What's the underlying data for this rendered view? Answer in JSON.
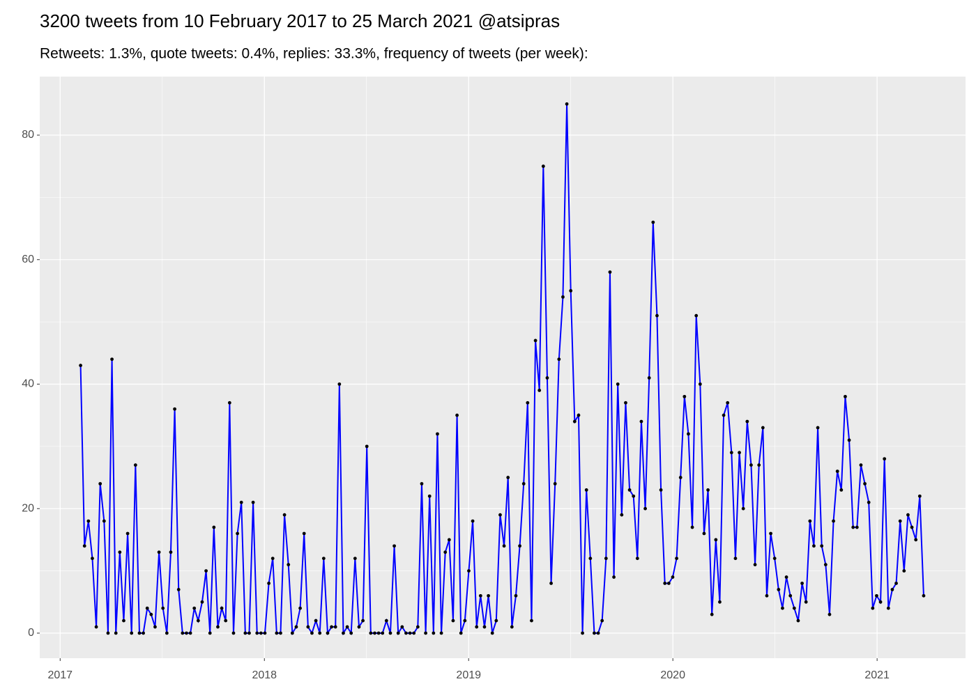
{
  "chart_data": {
    "type": "line",
    "title": "3200 tweets from 10 February 2017 to 25 March 2021 @atsipras",
    "subtitle": "Retweets: 1.3%, quote tweets: 0.4%, replies: 33.3%, frequency of tweets (per week):",
    "x": [
      2017.1,
      2017.1192,
      2017.1384,
      2017.1576,
      2017.1768,
      2017.196,
      2017.2152,
      2017.2344,
      2017.2536,
      2017.2728,
      2017.292,
      2017.3112,
      2017.3304,
      2017.3496,
      2017.3688,
      2017.388,
      2017.4072,
      2017.4264,
      2017.4456,
      2017.4648,
      2017.484,
      2017.5032,
      2017.5224,
      2017.5416,
      2017.5608,
      2017.58,
      2017.5992,
      2017.6184,
      2017.6376,
      2017.6568,
      2017.676,
      2017.6952,
      2017.7144,
      2017.7336,
      2017.7528,
      2017.772,
      2017.7912,
      2017.8104,
      2017.8296,
      2017.8488,
      2017.868,
      2017.8872,
      2017.9064,
      2017.9256,
      2017.9448,
      2017.964,
      2017.9832,
      2018.0024,
      2018.0216,
      2018.0408,
      2018.06,
      2018.0792,
      2018.0984,
      2018.1176,
      2018.1368,
      2018.156,
      2018.1752,
      2018.1944,
      2018.2136,
      2018.2328,
      2018.252,
      2018.2712,
      2018.2904,
      2018.3096,
      2018.3288,
      2018.348,
      2018.3672,
      2018.3864,
      2018.4056,
      2018.4248,
      2018.444,
      2018.4632,
      2018.4824,
      2018.5016,
      2018.5208,
      2018.54,
      2018.5592,
      2018.5784,
      2018.5976,
      2018.6168,
      2018.636,
      2018.6552,
      2018.6744,
      2018.6936,
      2018.7128,
      2018.732,
      2018.7512,
      2018.7704,
      2018.7896,
      2018.8088,
      2018.828,
      2018.8472,
      2018.8664,
      2018.8856,
      2018.9048,
      2018.924,
      2018.9432,
      2018.9624,
      2018.9816,
      2019.0008,
      2019.02,
      2019.0392,
      2019.0584,
      2019.0776,
      2019.0968,
      2019.116,
      2019.1352,
      2019.1544,
      2019.1736,
      2019.1928,
      2019.212,
      2019.2312,
      2019.2504,
      2019.2696,
      2019.2888,
      2019.308,
      2019.3272,
      2019.3464,
      2019.3656,
      2019.3848,
      2019.404,
      2019.4232,
      2019.4424,
      2019.4616,
      2019.4808,
      2019.5,
      2019.5192,
      2019.5384,
      2019.5576,
      2019.5768,
      2019.596,
      2019.6152,
      2019.6344,
      2019.6536,
      2019.6728,
      2019.692,
      2019.7112,
      2019.7304,
      2019.7496,
      2019.7688,
      2019.788,
      2019.8072,
      2019.8264,
      2019.8456,
      2019.8648,
      2019.884,
      2019.9032,
      2019.9224,
      2019.9416,
      2019.9608,
      2019.98,
      2019.9992,
      2020.0184,
      2020.0376,
      2020.0568,
      2020.076,
      2020.0952,
      2020.1144,
      2020.1336,
      2020.1528,
      2020.172,
      2020.1912,
      2020.2104,
      2020.2296,
      2020.2488,
      2020.268,
      2020.2872,
      2020.3064,
      2020.3256,
      2020.3448,
      2020.364,
      2020.3832,
      2020.4024,
      2020.4216,
      2020.4408,
      2020.46,
      2020.4792,
      2020.4984,
      2020.5176,
      2020.5368,
      2020.556,
      2020.5752,
      2020.5944,
      2020.6136,
      2020.6328,
      2020.652,
      2020.6712,
      2020.6904,
      2020.7096,
      2020.7288,
      2020.748,
      2020.7672,
      2020.7864,
      2020.8056,
      2020.8248,
      2020.844,
      2020.8632,
      2020.8824,
      2020.9016,
      2020.9208,
      2020.94,
      2020.9592,
      2020.9784,
      2020.9976,
      2021.0168,
      2021.036,
      2021.0552,
      2021.0744,
      2021.0936,
      2021.1128,
      2021.132,
      2021.1512,
      2021.1704,
      2021.1896,
      2021.2088,
      2021.228
    ],
    "values": [
      43,
      14,
      18,
      12,
      1,
      24,
      18,
      0,
      44,
      0,
      13,
      2,
      16,
      0,
      27,
      0,
      0,
      4,
      3,
      1,
      13,
      4,
      0,
      13,
      36,
      7,
      0,
      0,
      0,
      4,
      2,
      5,
      10,
      0,
      17,
      1,
      4,
      2,
      37,
      0,
      16,
      21,
      0,
      0,
      21,
      0,
      0,
      0,
      8,
      12,
      0,
      0,
      19,
      11,
      0,
      1,
      4,
      16,
      1,
      0,
      2,
      0,
      12,
      0,
      1,
      1,
      40,
      0,
      1,
      0,
      12,
      1,
      2,
      30,
      0,
      0,
      0,
      0,
      2,
      0,
      14,
      0,
      1,
      0,
      0,
      0,
      1,
      24,
      0,
      22,
      0,
      32,
      0,
      13,
      15,
      2,
      35,
      0,
      2,
      10,
      18,
      1,
      6,
      1,
      6,
      0,
      2,
      19,
      14,
      25,
      1,
      6,
      14,
      24,
      37,
      2,
      47,
      39,
      75,
      41,
      8,
      24,
      44,
      54,
      85,
      55,
      34,
      35,
      0,
      23,
      12,
      0,
      0,
      2,
      12,
      58,
      9,
      40,
      19,
      37,
      23,
      22,
      12,
      34,
      20,
      41,
      66,
      51,
      23,
      8,
      8,
      9,
      12,
      25,
      38,
      32,
      17,
      51,
      40,
      16,
      23,
      3,
      15,
      5,
      35,
      37,
      29,
      12,
      29,
      20,
      34,
      27,
      11,
      27,
      33,
      6,
      16,
      12,
      7,
      4,
      9,
      6,
      4,
      2,
      8,
      5,
      18,
      14,
      33,
      14,
      11,
      3,
      18,
      26,
      23,
      38,
      31,
      17,
      17,
      27,
      24,
      21,
      4,
      6,
      5,
      28,
      4,
      7,
      8,
      18,
      10,
      19,
      17,
      15,
      22,
      6
    ],
    "color": "#0000ff",
    "point_color": "#000000",
    "xlim": [
      2016.9,
      2021.433
    ],
    "xticks": [
      2017,
      2018,
      2019,
      2020,
      2021
    ],
    "ylim": [
      -4.03,
      89.4
    ],
    "yticks": [
      0,
      20,
      40,
      60,
      80
    ],
    "grid": true
  }
}
